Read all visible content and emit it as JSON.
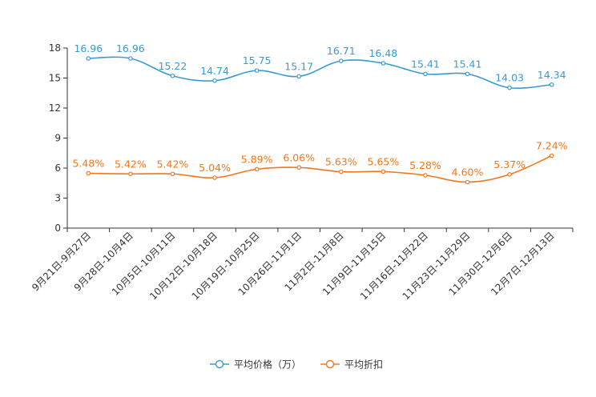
{
  "chart_data": {
    "type": "line",
    "categories": [
      "9月21日-9月27日",
      "9月28日-10月4日",
      "10月5日-10月11日",
      "10月12日-10月18日",
      "10月19日-10月25日",
      "10月26日-11月1日",
      "11月2日-11月8日",
      "11月9日-11月15日",
      "11月16日-11月22日",
      "11月23日-11月29日",
      "11月30日-12月6日",
      "12月7日-12月13日"
    ],
    "series": [
      {
        "name": "平均价格（万）",
        "color": "#3a9ad3",
        "values": [
          16.96,
          16.96,
          15.22,
          14.74,
          15.75,
          15.17,
          16.71,
          16.48,
          15.41,
          15.41,
          14.03,
          14.34
        ],
        "labels": [
          "16.96",
          "16.96",
          "15.22",
          "14.74",
          "15.75",
          "15.17",
          "16.71",
          "16.48",
          "15.41",
          "15.41",
          "14.03",
          "14.34"
        ]
      },
      {
        "name": "平均折扣",
        "color": "#f5761b",
        "values": [
          5.48,
          5.42,
          5.42,
          5.04,
          5.89,
          6.06,
          5.63,
          5.65,
          5.28,
          4.6,
          5.37,
          7.24
        ],
        "labels": [
          "5.48%",
          "5.42%",
          "5.42%",
          "5.04%",
          "5.89%",
          "6.06%",
          "5.63%",
          "5.65%",
          "5.28%",
          "4.60%",
          "5.37%",
          "7.24%"
        ]
      }
    ],
    "ylim": [
      0,
      18
    ],
    "yticks": [
      "0",
      "3",
      "6",
      "9",
      "12",
      "15",
      "18"
    ],
    "legend_position": "bottom-center",
    "grid": false,
    "title": "",
    "xlabel": "",
    "ylabel": ""
  }
}
